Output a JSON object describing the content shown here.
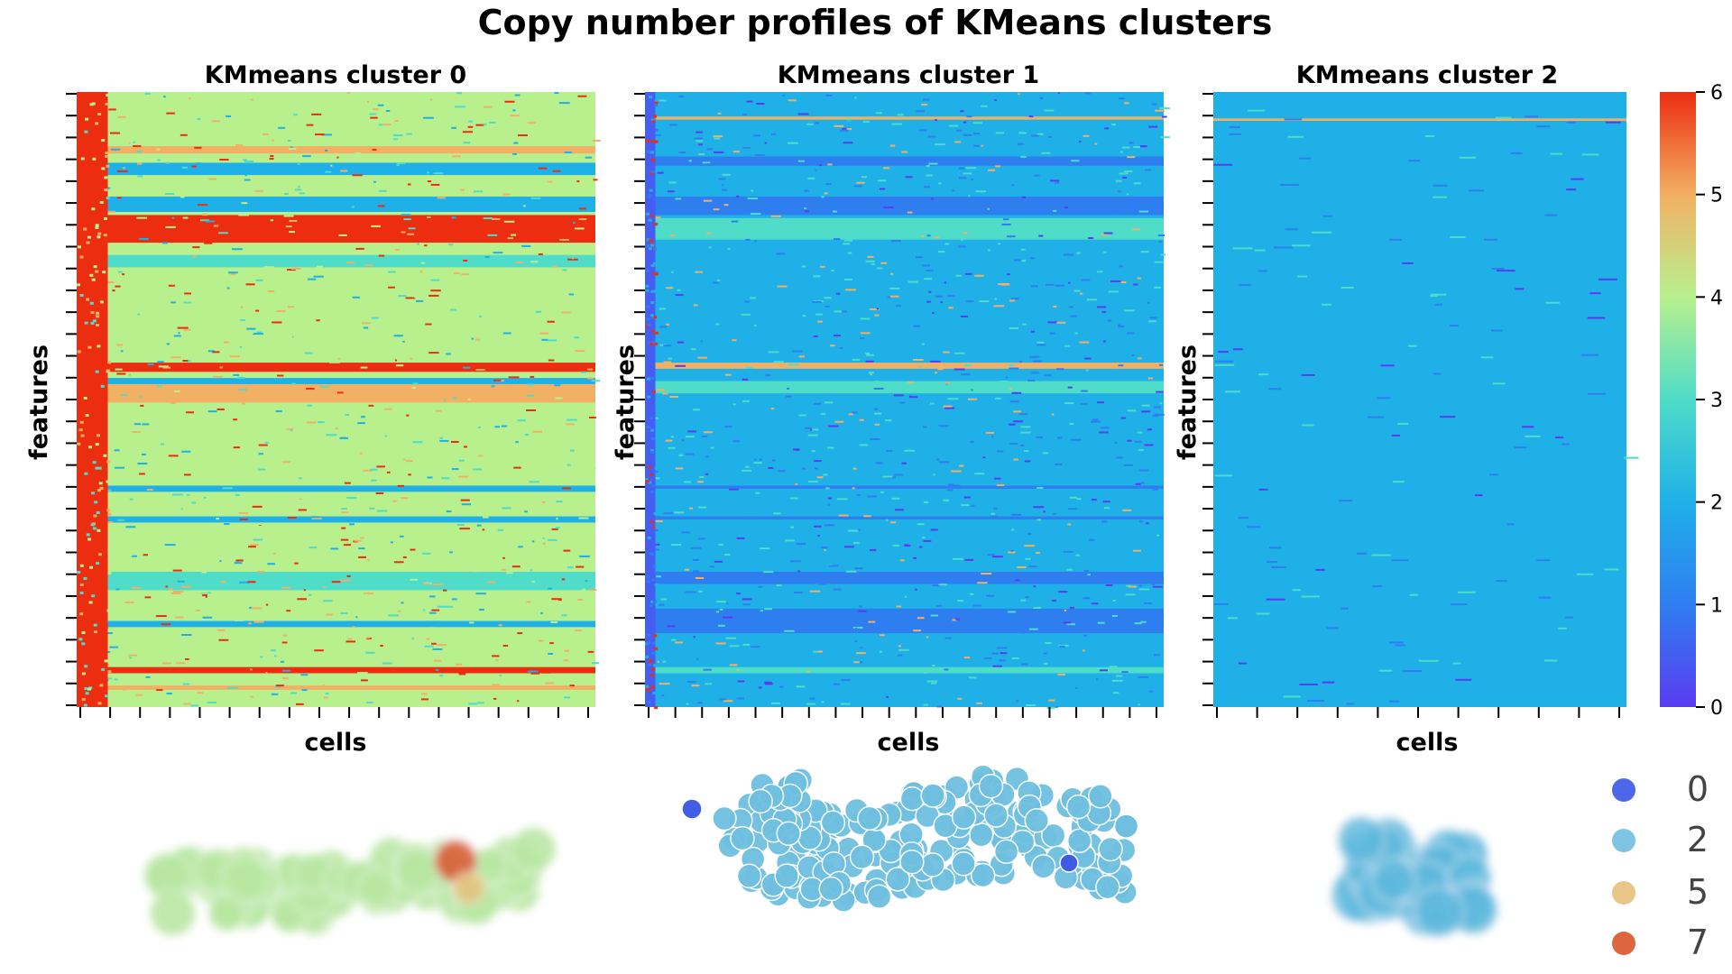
{
  "figure": {
    "title": "Copy number profiles of KMeans clusters"
  },
  "chart_data": [
    {
      "type": "heatmap",
      "title": "KMmeans cluster 0",
      "xlabel": "cells",
      "ylabel": "features",
      "colormap": "rainbow",
      "vmin": 0,
      "vmax": 6,
      "x_tick_count": 18,
      "y_tick_count": 29,
      "baseline_value": 4,
      "row_bands": [
        {
          "from": 0.2,
          "to": 0.245,
          "value": 6
        },
        {
          "from": 0.088,
          "to": 0.1,
          "value": 5
        },
        {
          "from": 0.115,
          "to": 0.135,
          "value": 2
        },
        {
          "from": 0.17,
          "to": 0.195,
          "value": 2
        },
        {
          "from": 0.265,
          "to": 0.285,
          "value": 3
        },
        {
          "from": 0.44,
          "to": 0.455,
          "value": 6
        },
        {
          "from": 0.465,
          "to": 0.475,
          "value": 2
        },
        {
          "from": 0.475,
          "to": 0.505,
          "value": 5
        },
        {
          "from": 0.64,
          "to": 0.65,
          "value": 2
        },
        {
          "from": 0.69,
          "to": 0.7,
          "value": 2
        },
        {
          "from": 0.78,
          "to": 0.81,
          "value": 3
        },
        {
          "from": 0.86,
          "to": 0.87,
          "value": 2
        },
        {
          "from": 0.935,
          "to": 0.945,
          "value": 6
        },
        {
          "from": 0.965,
          "to": 0.972,
          "value": 5
        }
      ],
      "left_block_value": 6,
      "left_block_fraction": 0.06
    },
    {
      "type": "heatmap",
      "title": "KMmeans cluster 1",
      "xlabel": "cells",
      "ylabel": "features",
      "colormap": "rainbow",
      "vmin": 0,
      "vmax": 6,
      "x_tick_count": 20,
      "y_tick_count": 29,
      "baseline_value": 2,
      "row_bands": [
        {
          "from": 0.04,
          "to": 0.045,
          "value": 5
        },
        {
          "from": 0.105,
          "to": 0.12,
          "value": 1
        },
        {
          "from": 0.17,
          "to": 0.2,
          "value": 1
        },
        {
          "from": 0.205,
          "to": 0.24,
          "value": 3
        },
        {
          "from": 0.44,
          "to": 0.45,
          "value": 5
        },
        {
          "from": 0.47,
          "to": 0.49,
          "value": 3
        },
        {
          "from": 0.64,
          "to": 0.645,
          "value": 1
        },
        {
          "from": 0.69,
          "to": 0.695,
          "value": 1
        },
        {
          "from": 0.78,
          "to": 0.8,
          "value": 1
        },
        {
          "from": 0.84,
          "to": 0.88,
          "value": 1
        },
        {
          "from": 0.935,
          "to": 0.945,
          "value": 3
        }
      ],
      "left_block_value": 0.5,
      "left_block_fraction": 0.02
    },
    {
      "type": "heatmap",
      "title": "KMmeans cluster 2",
      "xlabel": "cells",
      "ylabel": "features",
      "colormap": "rainbow",
      "vmin": 0,
      "vmax": 6,
      "x_tick_count": 11,
      "y_tick_count": 29,
      "baseline_value": 2,
      "row_bands": [
        {
          "from": 0.043,
          "to": 0.047,
          "value": 5
        }
      ],
      "left_block_value": 2,
      "left_block_fraction": 0
    }
  ],
  "colorbar": {
    "ticks": [
      "6",
      "5",
      "4",
      "3",
      "2",
      "1",
      "0"
    ]
  },
  "embeddings": {
    "legend": [
      "0",
      "2",
      "5",
      "7"
    ],
    "colors": {
      "0": "#3b55e6",
      "2": "#6fbfe0",
      "5": "#e6c07a",
      "7": "#d9552b"
    },
    "cluster0_dominant": "7",
    "cluster1_dominant": "2",
    "cluster2_dominant": "2"
  }
}
